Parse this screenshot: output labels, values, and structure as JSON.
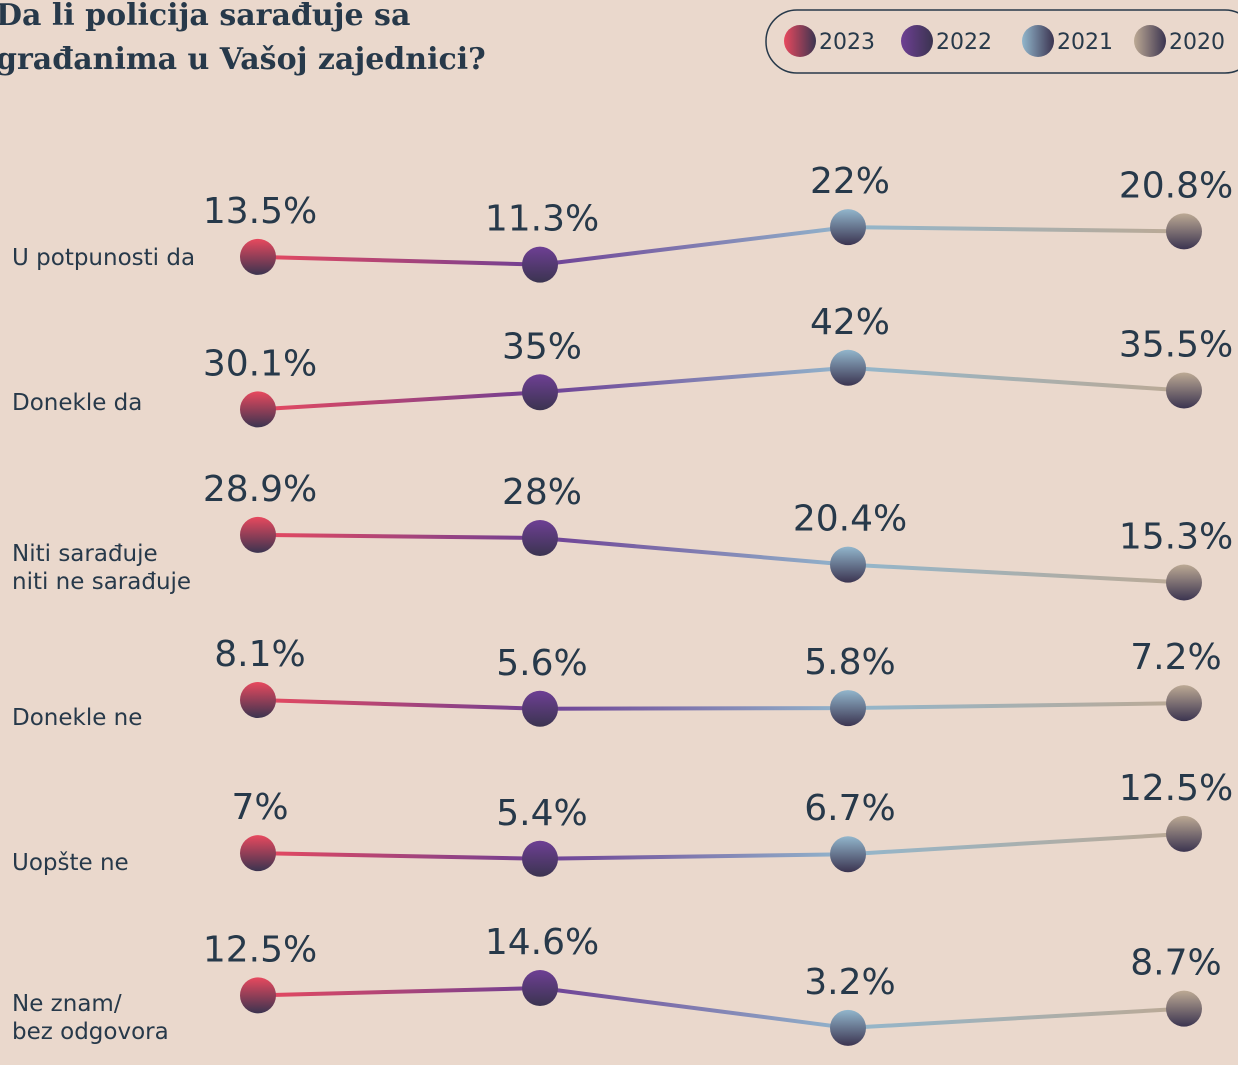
{
  "chart_data": {
    "type": "line",
    "title": "Da li policija sarađuje sa građanima u Vašoj zajednici?",
    "categories": [
      [
        "U potpunosti da"
      ],
      [
        "Donekle da"
      ],
      [
        "Niti sarađuje",
        "niti ne sarađuje"
      ],
      [
        "Donekle ne"
      ],
      [
        "Uopšte ne"
      ],
      [
        "Ne znam/",
        "bez odgovora"
      ]
    ],
    "series": [
      {
        "name": "2023",
        "color": "#e8495e",
        "values": [
          13.5,
          30.1,
          28.9,
          8.1,
          7,
          12.5
        ],
        "value_labels": [
          "13.5%",
          "30.1%",
          "28.9%",
          "8.1%",
          "7%",
          "12.5%"
        ]
      },
      {
        "name": "2022",
        "color": "#6e3f94",
        "values": [
          11.3,
          35,
          28,
          5.6,
          5.4,
          14.6
        ],
        "value_labels": [
          "11.3%",
          "35%",
          "28%",
          "5.6%",
          "5.4%",
          "14.6%"
        ]
      },
      {
        "name": "2021",
        "color": "#92b6cc",
        "values": [
          22,
          42,
          20.4,
          5.8,
          6.7,
          3.2
        ],
        "value_labels": [
          "22%",
          "42%",
          "20.4%",
          "5.8%",
          "6.7%",
          "3.2%"
        ]
      },
      {
        "name": "2020",
        "color": "#bca994",
        "values": [
          20.8,
          35.5,
          15.3,
          7.2,
          12.5,
          8.7
        ],
        "value_labels": [
          "20.8%",
          "35.5%",
          "15.3%",
          "7.2%",
          "12.5%",
          "8.7%"
        ]
      }
    ]
  }
}
